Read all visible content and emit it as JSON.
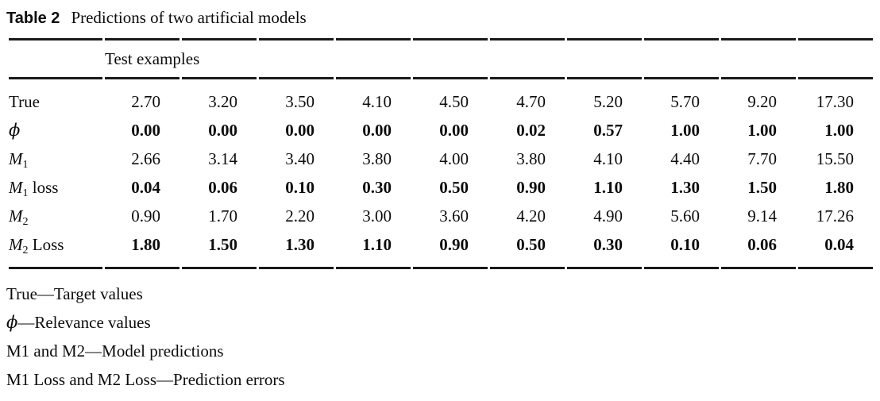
{
  "caption": {
    "tag": "Table 2",
    "title": "Predictions of two artificial models"
  },
  "table": {
    "group_header": "Test examples",
    "rows": [
      {
        "label_base": "True",
        "label_sub": "",
        "label_suffix": "",
        "values": [
          "2.70",
          "3.20",
          "3.50",
          "4.10",
          "4.50",
          "4.70",
          "5.20",
          "5.70",
          "9.20",
          "17.30"
        ]
      },
      {
        "label_base": "ϕ",
        "label_sub": "",
        "label_suffix": "",
        "values": [
          "0.00",
          "0.00",
          "0.00",
          "0.00",
          "0.00",
          "0.02",
          "0.57",
          "1.00",
          "1.00",
          "1.00"
        ]
      },
      {
        "label_base": "M",
        "label_sub": "1",
        "label_suffix": "",
        "values": [
          "2.66",
          "3.14",
          "3.40",
          "3.80",
          "4.00",
          "3.80",
          "4.10",
          "4.40",
          "7.70",
          "15.50"
        ]
      },
      {
        "label_base": "M",
        "label_sub": "1",
        "label_suffix": " loss",
        "values": [
          "0.04",
          "0.06",
          "0.10",
          "0.30",
          "0.50",
          "0.90",
          "1.10",
          "1.30",
          "1.50",
          "1.80"
        ]
      },
      {
        "label_base": "M",
        "label_sub": "2",
        "label_suffix": "",
        "values": [
          "0.90",
          "1.70",
          "2.20",
          "3.00",
          "3.60",
          "4.20",
          "4.90",
          "5.60",
          "9.14",
          "17.26"
        ]
      },
      {
        "label_base": "M",
        "label_sub": "2",
        "label_suffix": " Loss",
        "values": [
          "1.80",
          "1.50",
          "1.30",
          "1.10",
          "0.90",
          "0.50",
          "0.30",
          "0.10",
          "0.06",
          "0.04"
        ]
      }
    ]
  },
  "footnotes": [
    {
      "lead": "True",
      "rest": "—Target values"
    },
    {
      "lead": "ϕ",
      "rest": "—Relevance values"
    },
    {
      "lead": "M1 and M2",
      "rest": "—Model predictions"
    },
    {
      "lead": "M1 Loss and M2 Loss",
      "rest": "—Prediction errors"
    }
  ]
}
